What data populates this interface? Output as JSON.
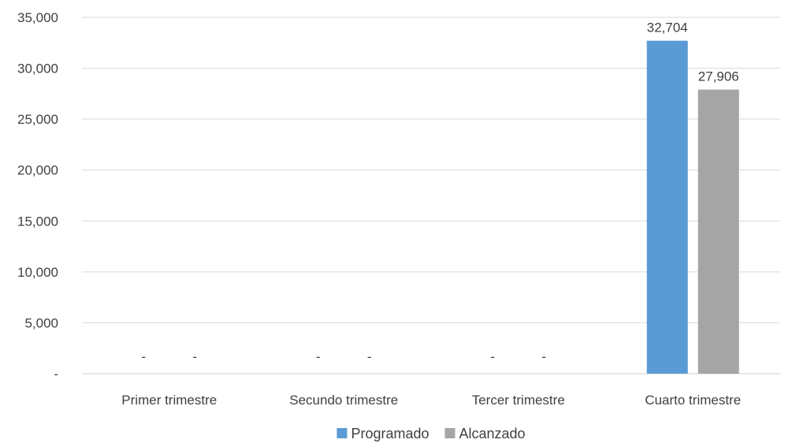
{
  "chart_data": {
    "type": "bar",
    "title": "",
    "xlabel": "",
    "ylabel": "",
    "categories": [
      "Primer trimestre",
      "Secundo trimestre",
      "Tercer trimestre",
      "Cuarto trimestre"
    ],
    "series": [
      {
        "name": "Programado",
        "color": "#5b9bd5",
        "values": [
          0,
          0,
          0,
          32704
        ]
      },
      {
        "name": "Alcanzado",
        "color": "#a5a5a5",
        "values": [
          0,
          0,
          0,
          27906
        ]
      }
    ],
    "data_labels": [
      [
        "-",
        "-",
        "-",
        "32,704"
      ],
      [
        "-",
        "-",
        "-",
        "27,906"
      ]
    ],
    "ylim": [
      0,
      35000
    ],
    "yticks": [
      0,
      5000,
      10000,
      15000,
      20000,
      25000,
      30000,
      35000
    ],
    "ytick_labels": [
      "-",
      "5,000",
      "10,000",
      "15,000",
      "20,000",
      "25,000",
      "30,000",
      "35,000"
    ],
    "grid": true,
    "legend_position": "bottom"
  }
}
